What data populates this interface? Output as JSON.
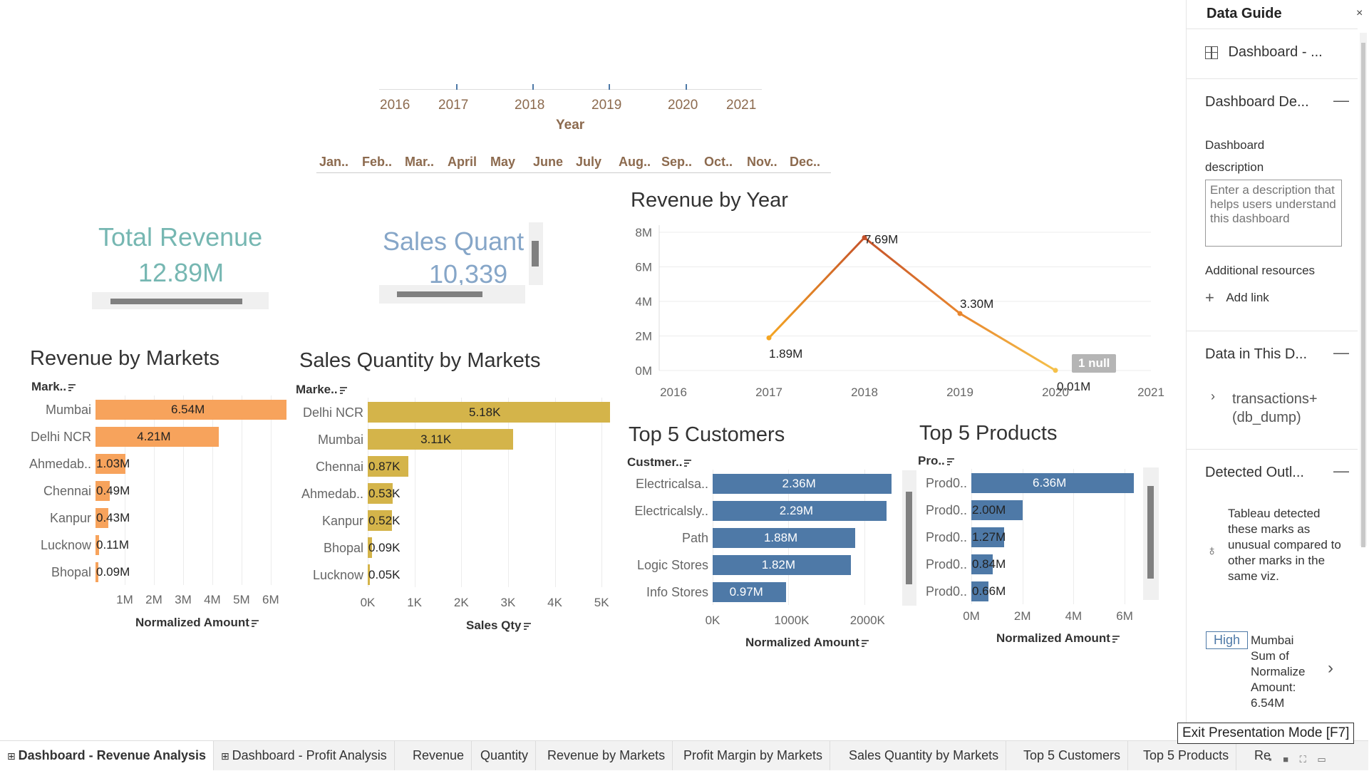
{
  "year_filter": {
    "years": [
      "2016",
      "2017",
      "2018",
      "2019",
      "2020",
      "2021"
    ],
    "title": "Year",
    "months": [
      "Jan..",
      "Feb..",
      "Mar..",
      "April",
      "May",
      "June",
      "July",
      "Aug..",
      "Sep..",
      "Oct..",
      "Nov..",
      "Dec.."
    ]
  },
  "kpis": {
    "total_revenue": {
      "title": "Total Revenue",
      "value": "12.89M",
      "color": "#76b7b2"
    },
    "sales_quantity": {
      "title": "Sales Quant",
      "value": "10,339",
      "color": "#86a6c8"
    }
  },
  "revenue_by_markets": {
    "title": "Revenue by Markets",
    "axis_head": "Mark..",
    "color": "#f7a35c",
    "categories": [
      "Mumbai",
      "Delhi NCR",
      "Ahmedab..",
      "Chennai",
      "Kanpur",
      "Lucknow",
      "Bhopal"
    ],
    "values": [
      6.54,
      4.21,
      1.03,
      0.49,
      0.43,
      0.11,
      0.09
    ],
    "labels": [
      "6.54M",
      "4.21M",
      "1.03M",
      "0.49M",
      "0.43M",
      "0.11M",
      "0.09M"
    ],
    "ticks": [
      "1M",
      "2M",
      "3M",
      "4M",
      "5M",
      "6M"
    ],
    "xlabel": "Normalized Amount"
  },
  "sales_qty_by_markets": {
    "title": "Sales Quantity by Markets",
    "axis_head": "Marke..",
    "color": "#d4b44a",
    "categories": [
      "Delhi NCR",
      "Mumbai",
      "Chennai",
      "Ahmedab..",
      "Kanpur",
      "Bhopal",
      "Lucknow"
    ],
    "values": [
      5.18,
      3.11,
      0.87,
      0.53,
      0.52,
      0.09,
      0.05
    ],
    "labels": [
      "5.18K",
      "3.11K",
      "0.87K",
      "0.53K",
      "0.52K",
      "0.09K",
      "0.05K"
    ],
    "ticks": [
      "0K",
      "1K",
      "2K",
      "3K",
      "4K",
      "5K"
    ],
    "xlabel": "Sales Qty"
  },
  "revenue_by_year": {
    "title": "Revenue by Year",
    "y_ticks": [
      "8M",
      "6M",
      "4M",
      "2M",
      "0M"
    ],
    "x_ticks": [
      "2016",
      "2017",
      "2018",
      "2019",
      "2020",
      "2021"
    ],
    "points": [
      {
        "year": "2017",
        "value": 1.89,
        "label": "1.89M"
      },
      {
        "year": "2018",
        "value": 7.69,
        "label": "7.69M"
      },
      {
        "year": "2019",
        "value": 3.3,
        "label": "3.30M"
      },
      {
        "year": "2020",
        "value": 0.01,
        "label": "0.01M"
      }
    ],
    "null_badge": "1 null"
  },
  "top5_customers": {
    "title": "Top 5 Customers",
    "axis_head": "Custmer..",
    "color": "#4e79a7",
    "categories": [
      "Electricalsa..",
      "Electricalsly..",
      "Path",
      "Logic Stores",
      "Info Stores"
    ],
    "values": [
      2360,
      2290,
      1880,
      1820,
      970
    ],
    "labels": [
      "2.36M",
      "2.29M",
      "1.88M",
      "1.82M",
      "0.97M"
    ],
    "ticks": [
      "0K",
      "1000K",
      "2000K"
    ],
    "xlabel": "Normalized Amount"
  },
  "top5_products": {
    "title": "Top 5 Products",
    "axis_head": "Pro..",
    "color": "#4e79a7",
    "categories": [
      "Prod0..",
      "Prod0..",
      "Prod0..",
      "Prod0..",
      "Prod0.."
    ],
    "values": [
      6.36,
      2.0,
      1.27,
      0.84,
      0.66
    ],
    "labels": [
      "6.36M",
      "2.00M",
      "1.27M",
      "0.84M",
      "0.66M"
    ],
    "ticks": [
      "0M",
      "2M",
      "4M",
      "6M"
    ],
    "xlabel": "Normalized Amount"
  },
  "panel": {
    "title": "Data Guide",
    "close": "×",
    "dashboard_link": "Dashboard - ...",
    "section_desc": "Dashboard De...",
    "desc_label_1": "Dashboard",
    "desc_label_2": "description",
    "desc_placeholder": "Enter a description that helps users understand this dashboard",
    "additional": "Additional resources",
    "add_link": "Add link",
    "section_data": "Data in This D...",
    "data_source_1": "transactions+",
    "data_source_2": "(db_dump)",
    "section_outliers": "Detected Outl...",
    "outlier_text": "Tableau detected these marks as unusual compared to other marks in the same viz.",
    "badge": "High",
    "outlier_detail": [
      "Mumbai",
      "Sum of",
      "Normalize",
      "Amount:",
      "6.54M"
    ]
  },
  "tabs": [
    "Dashboard - Revenue Analysis",
    "Dashboard - Profit Analysis",
    "Revenue",
    "Quantity",
    "Revenue by Markets",
    "Profit Margin by Markets",
    "Sales Quantity by Markets",
    "Top 5 Customers",
    "Top 5 Products",
    "Re"
  ],
  "tooltip": "Exit Presentation Mode [F7]"
}
